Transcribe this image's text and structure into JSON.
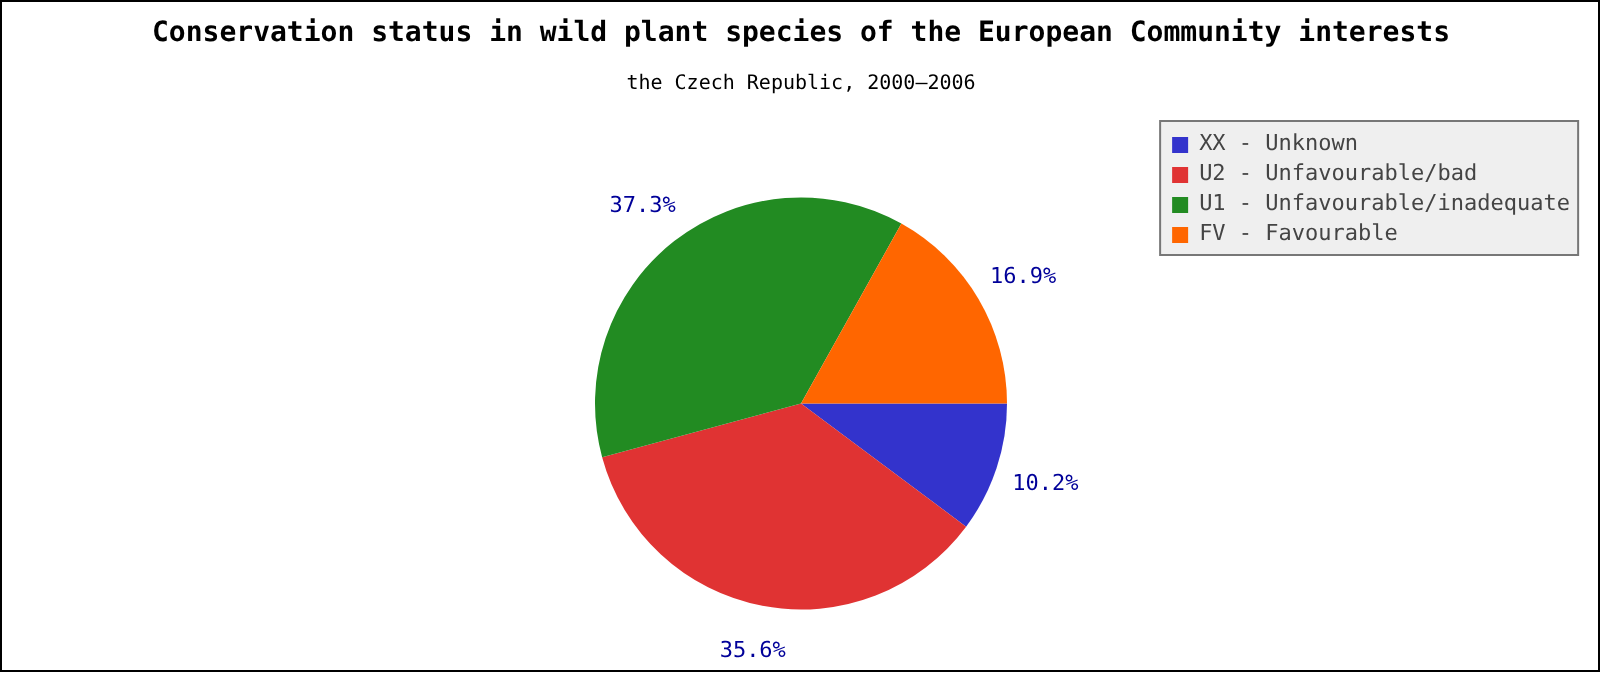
{
  "chart_data": {
    "type": "pie",
    "title": "Conservation status in wild plant species of the European Community interests",
    "subtitle": "the Czech Republic, 2000–2006",
    "categories": [
      "XX - Unknown",
      "U2 - Unfavourable/bad",
      "U1 - Unfavourable/inadequate",
      "FV - Favourable"
    ],
    "values": [
      10.2,
      35.6,
      37.3,
      16.9
    ],
    "colors": [
      "#3333cc",
      "#e03333",
      "#228b22",
      "#ff6600"
    ],
    "value_labels": [
      "10.2%",
      "35.6%",
      "37.3%",
      "16.9%"
    ],
    "legend": "top right"
  }
}
